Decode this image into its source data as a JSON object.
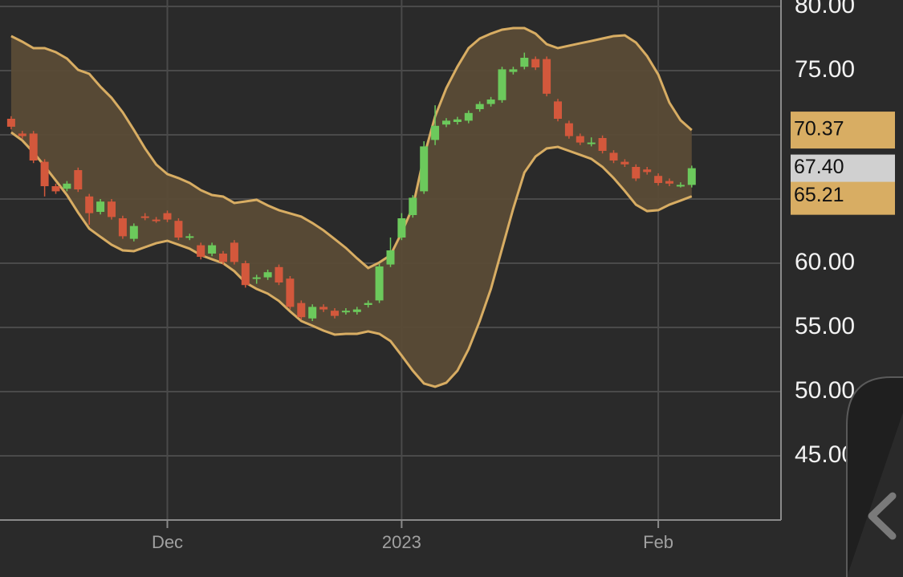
{
  "chart_data": {
    "type": "candlestick",
    "categories": [
      null,
      null,
      null,
      null,
      null,
      null,
      null,
      null,
      null,
      null,
      null,
      null,
      null,
      null,
      null,
      null,
      null,
      null,
      null,
      null,
      null,
      null,
      null,
      null,
      null,
      null,
      null,
      null,
      null,
      null,
      null,
      null,
      null,
      null,
      null,
      null,
      null,
      null,
      null,
      null,
      null,
      null,
      null,
      null,
      null,
      null,
      null,
      null,
      null,
      null,
      null,
      null,
      null,
      null,
      null,
      null,
      null,
      null,
      null,
      null,
      null,
      null
    ],
    "open": [
      71.25,
      70.1,
      70.1,
      67.9,
      66.0,
      65.8,
      67.25,
      65.2,
      64.0,
      64.8,
      63.5,
      61.9,
      63.65,
      63.4,
      63.9,
      63.3,
      62.0,
      61.4,
      60.75,
      60.75,
      61.6,
      60.0,
      58.8,
      58.9,
      59.7,
      58.8,
      56.9,
      55.7,
      56.6,
      56.3,
      56.2,
      56.2,
      56.75,
      57.1,
      59.9,
      62.0,
      63.75,
      65.6,
      69.6,
      70.8,
      71.0,
      71.1,
      72.0,
      72.4,
      72.7,
      74.9,
      75.3,
      75.9,
      75.9,
      72.6,
      70.9,
      69.9,
      69.3,
      69.75,
      68.6,
      67.9,
      67.5,
      67.3,
      66.8,
      66.4,
      66.0,
      66.1
    ],
    "high": [
      71.45,
      70.3,
      70.3,
      68.1,
      66.2,
      66.4,
      67.45,
      65.4,
      65.0,
      65.0,
      63.7,
      63.1,
      63.9,
      63.6,
      64.1,
      63.5,
      62.3,
      61.6,
      61.6,
      60.95,
      61.8,
      60.2,
      59.1,
      59.5,
      59.9,
      59.0,
      57.1,
      56.8,
      56.8,
      56.5,
      56.5,
      56.6,
      57.1,
      59.95,
      62.0,
      63.9,
      65.3,
      69.5,
      72.3,
      71.3,
      71.4,
      71.9,
      72.6,
      72.95,
      75.3,
      75.3,
      76.4,
      76.1,
      76.1,
      72.8,
      71.1,
      70.1,
      69.8,
      69.95,
      68.8,
      68.1,
      67.7,
      67.5,
      67.0,
      66.6,
      66.3,
      67.6
    ],
    "low": [
      70.43,
      69.7,
      67.8,
      65.2,
      65.4,
      65.6,
      65.55,
      63.0,
      63.8,
      63.4,
      61.9,
      61.7,
      63.35,
      63.15,
      63.2,
      61.8,
      61.8,
      60.3,
      60.55,
      59.9,
      59.9,
      58.1,
      58.4,
      58.7,
      58.3,
      56.4,
      55.6,
      55.5,
      56.2,
      55.7,
      56.0,
      56.0,
      56.55,
      56.9,
      59.7,
      61.8,
      63.55,
      65.4,
      69.2,
      70.6,
      70.8,
      70.9,
      71.8,
      72.2,
      72.5,
      74.7,
      75.1,
      75.05,
      73.0,
      71.05,
      69.7,
      69.2,
      69.1,
      68.55,
      67.8,
      67.5,
      66.4,
      66.9,
      66.05,
      66.0,
      65.9,
      65.9
    ],
    "close": [
      70.63,
      69.9,
      68.0,
      66.0,
      65.6,
      66.2,
      65.75,
      63.9,
      64.8,
      63.6,
      62.1,
      62.9,
      63.55,
      63.35,
      63.4,
      62.0,
      62.1,
      60.5,
      61.4,
      60.1,
      60.1,
      58.3,
      58.9,
      59.3,
      58.5,
      56.6,
      55.8,
      56.6,
      56.4,
      55.9,
      56.3,
      56.4,
      56.9,
      59.75,
      61.0,
      63.5,
      65.1,
      69.1,
      70.7,
      71.1,
      71.2,
      71.7,
      72.4,
      72.75,
      75.1,
      75.1,
      76.0,
      75.25,
      73.2,
      71.25,
      69.9,
      69.4,
      69.4,
      68.75,
      68.0,
      67.7,
      66.6,
      67.1,
      66.25,
      66.2,
      66.1,
      67.4
    ],
    "last_label": "67.40",
    "up_color": "#6cc95c",
    "down_color": "#d3583c",
    "tag_color": "#d0d0d0",
    "series": [
      {
        "color": "#d8ad63",
        "last_label": "70.37",
        "values": [
          77.69,
          77.25,
          76.75,
          76.75,
          76.44,
          75.94,
          75.06,
          74.75,
          73.75,
          72.88,
          71.75,
          70.38,
          68.94,
          67.69,
          66.94,
          66.63,
          66.25,
          65.69,
          65.31,
          65.19,
          64.69,
          64.81,
          64.94,
          64.5,
          64.13,
          63.88,
          63.63,
          63.13,
          62.56,
          61.88,
          61.19,
          60.38,
          59.63,
          60.06,
          60.63,
          62.38,
          64.38,
          68.31,
          71.44,
          73.63,
          75.31,
          76.75,
          77.5,
          77.88,
          78.19,
          78.31,
          78.31,
          77.88,
          77.06,
          76.75,
          76.94,
          77.13,
          77.31,
          77.5,
          77.69,
          77.75,
          77.19,
          76.13,
          74.69,
          72.5,
          71.13,
          70.37
        ]
      },
      {
        "color": "#d8ad63",
        "last_label": "65.21",
        "values": [
          70.19,
          69.56,
          68.63,
          67.56,
          66.44,
          65.31,
          63.94,
          62.69,
          62.06,
          61.44,
          61.0,
          60.94,
          61.25,
          61.56,
          61.75,
          61.44,
          61.13,
          60.63,
          60.31,
          60.0,
          59.38,
          58.5,
          58.0,
          57.63,
          57.06,
          56.25,
          55.5,
          55.13,
          54.75,
          54.44,
          54.5,
          54.5,
          54.69,
          54.5,
          53.94,
          52.81,
          51.63,
          50.63,
          50.38,
          50.69,
          51.63,
          53.31,
          55.5,
          58.0,
          61.13,
          64.25,
          67.06,
          68.31,
          68.94,
          69.06,
          68.75,
          68.44,
          68.13,
          67.5,
          66.63,
          65.63,
          64.56,
          64.06,
          64.13,
          64.56,
          64.88,
          65.21
        ]
      }
    ],
    "band_fill": "#5a4b36",
    "xlim": [
      -1,
      69
    ],
    "xticks": [
      {
        "value": 14,
        "label": "Dec"
      },
      {
        "value": 35,
        "label": "2023"
      },
      {
        "value": 58,
        "label": "Feb"
      }
    ],
    "ylim": [
      40,
      80.5
    ],
    "yticks": [
      {
        "value": 45,
        "label": "45.00"
      },
      {
        "value": 50,
        "label": "50.00"
      },
      {
        "value": 55,
        "label": "55.00"
      },
      {
        "value": 60,
        "label": "60.00"
      },
      {
        "value": 65,
        "label": "65.00"
      },
      {
        "value": 70,
        "label": "70.00"
      },
      {
        "value": 75,
        "label": "75.00"
      },
      {
        "value": 80,
        "label": "80.00"
      }
    ],
    "grid": true
  }
}
